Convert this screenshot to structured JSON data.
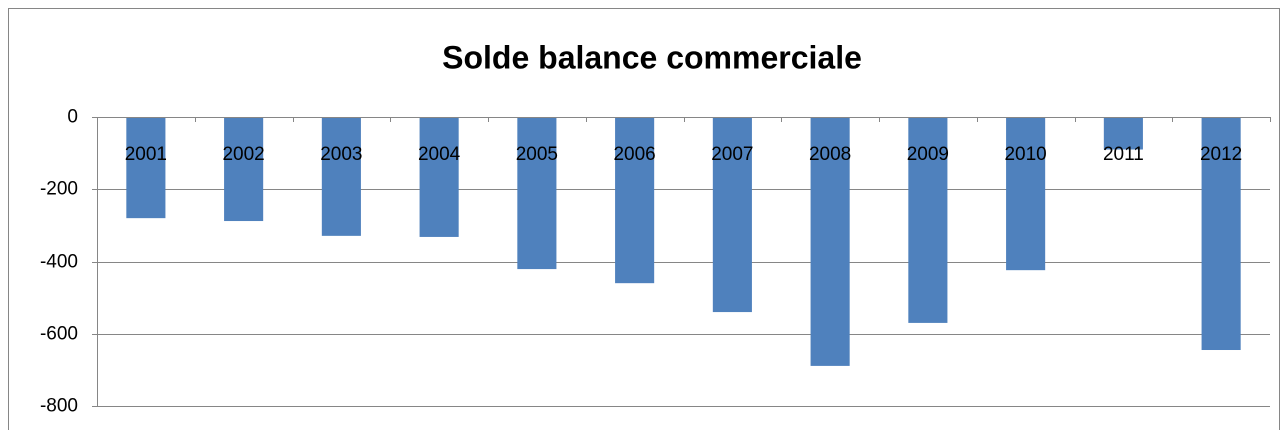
{
  "chart_data": {
    "type": "bar",
    "title": "Solde balance commerciale",
    "categories": [
      "2001",
      "2002",
      "2003",
      "2004",
      "2005",
      "2006",
      "2007",
      "2008",
      "2009",
      "2010",
      "2011",
      "2012"
    ],
    "values": [
      -280,
      -288,
      -329,
      -332,
      -421,
      -460,
      -540,
      -689,
      -570,
      -424,
      -90,
      -645
    ],
    "color": "#4f81bd",
    "ylim": [
      -800,
      0
    ],
    "yticks": [
      -800,
      -600,
      -400,
      -200,
      0
    ],
    "grid": true
  }
}
